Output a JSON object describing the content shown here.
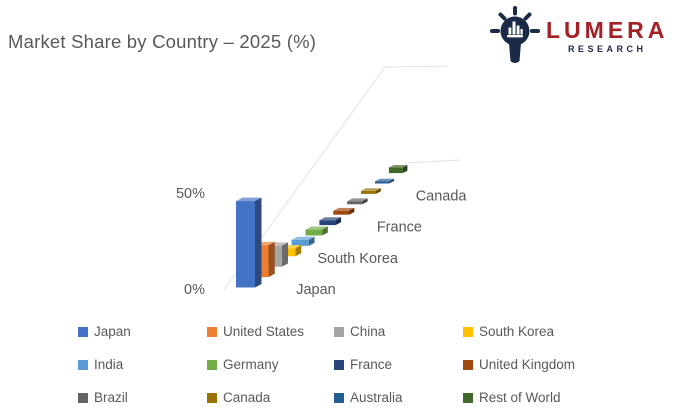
{
  "header": {
    "title": "Market Share by Country – 2025 (%)",
    "title_color": "#595959"
  },
  "logo": {
    "brand": "LUMERA",
    "tagline": "RESEARCH",
    "brand_color": "#A32026",
    "navy_color": "#1B2A47",
    "icon": "lightbulb-bar-chart-icon"
  },
  "chart_data": {
    "type": "bar",
    "style": "3d-column-perspective",
    "title": "Market Share by Country – 2025 (%)",
    "categories": [
      "Japan",
      "United States",
      "China",
      "South Korea",
      "India",
      "Germany",
      "France",
      "United Kingdom",
      "Brazil",
      "Canada",
      "Australia",
      "Rest of World"
    ],
    "values": [
      45,
      17,
      11.5,
      4.5,
      3.5,
      3.5,
      3,
      2.5,
      2,
      2,
      1.5,
      4
    ],
    "colors": [
      "#4472C4",
      "#ED7D31",
      "#A5A5A5",
      "#FFC000",
      "#5B9BD5",
      "#70AD47",
      "#264478",
      "#9E480E",
      "#636363",
      "#997300",
      "#255E91",
      "#43682B"
    ],
    "unit": "%",
    "value_axis": {
      "min": 0,
      "max": 50,
      "ticks": [
        0,
        50
      ],
      "tick_labels": [
        "0%",
        "50%"
      ]
    },
    "category_axis": {
      "label_interval": 3,
      "visible_labels": [
        "Japan",
        "South Korea",
        "France",
        "Canada"
      ]
    },
    "legend": {
      "position": "bottom",
      "columns": 4,
      "rows": 3
    },
    "gridlines": false,
    "wall_edge_color": "#E2E2E2",
    "text_color": "#595959"
  }
}
